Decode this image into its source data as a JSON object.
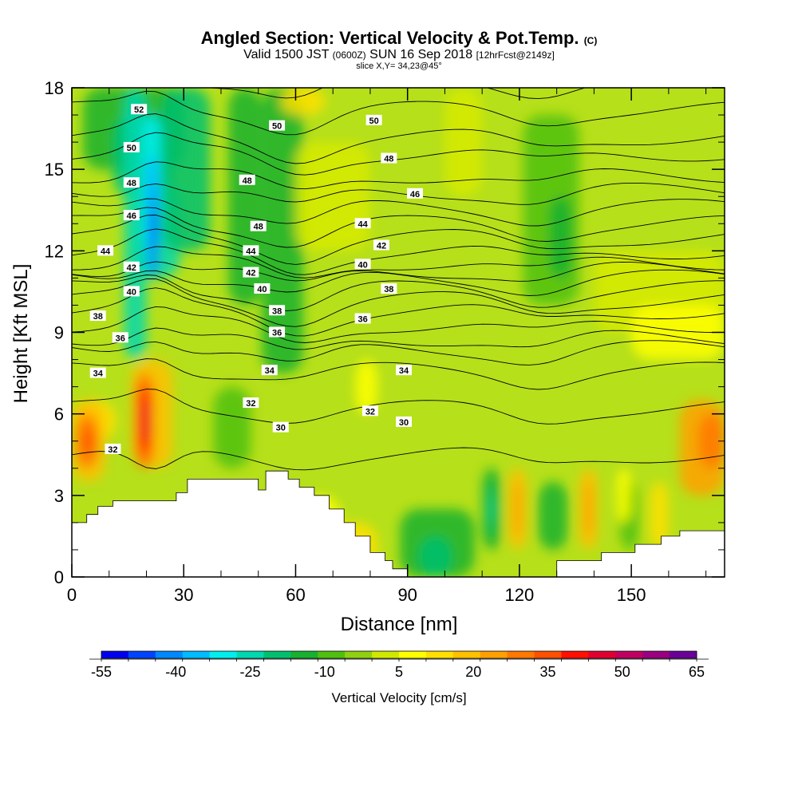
{
  "title": "Angled Section: Vertical Velocity & Pot.Temp.",
  "title_mark": "(C)",
  "subtitle_a": "Valid 1500 JST",
  "subtitle_b": "(0600Z)",
  "subtitle_c": "SUN 16 Sep 2018",
  "subtitle_d": "[12hrFcst@2149z]",
  "slice": "slice X,Y= 34,23@45°",
  "chart_data": {
    "type": "heatmap",
    "xlabel": "Distance [nm]",
    "ylabel": "Height [Kft MSL]",
    "xlim": [
      0,
      175
    ],
    "ylim": [
      0,
      18
    ],
    "x_ticks": [
      "0",
      "30",
      "60",
      "90",
      "120",
      "150"
    ],
    "y_ticks": [
      "0",
      "3",
      "6",
      "9",
      "12",
      "15",
      "18"
    ],
    "x_tick_values": [
      0,
      30,
      60,
      90,
      120,
      150
    ],
    "y_tick_values": [
      0,
      3,
      6,
      9,
      12,
      15,
      18
    ],
    "colorbar": {
      "title": "Vertical Velocity [cm/s]",
      "labels": [
        "-55",
        "-40",
        "-25",
        "-10",
        "5",
        "20",
        "35",
        "50",
        "65"
      ],
      "label_values": [
        -55,
        -40,
        -25,
        -10,
        5,
        20,
        35,
        50,
        65
      ],
      "colors": [
        "#0000f0",
        "#0044ff",
        "#0088ff",
        "#00bbff",
        "#00eeee",
        "#00d8b0",
        "#00c070",
        "#18b030",
        "#50c010",
        "#90d010",
        "#d0e800",
        "#ffff00",
        "#ffe000",
        "#ffc000",
        "#ffa000",
        "#ff7800",
        "#ff5000",
        "#ff1000",
        "#e00030",
        "#c00060",
        "#9a0080",
        "#6a0098"
      ]
    },
    "isentropes": [
      30,
      32,
      34,
      36,
      38,
      40,
      42,
      44,
      46,
      48,
      50,
      52
    ],
    "contour_labels": [
      {
        "text": "52",
        "x": 18,
        "y": 17.2
      },
      {
        "text": "50",
        "x": 16,
        "y": 15.8
      },
      {
        "text": "48",
        "x": 16,
        "y": 14.5
      },
      {
        "text": "46",
        "x": 16,
        "y": 13.3
      },
      {
        "text": "44",
        "x": 9,
        "y": 12.0
      },
      {
        "text": "42",
        "x": 16,
        "y": 11.4
      },
      {
        "text": "40",
        "x": 16,
        "y": 10.5
      },
      {
        "text": "38",
        "x": 7,
        "y": 9.6
      },
      {
        "text": "36",
        "x": 13,
        "y": 8.8
      },
      {
        "text": "34",
        "x": 7,
        "y": 7.5
      },
      {
        "text": "32",
        "x": 11,
        "y": 4.7
      },
      {
        "text": "50",
        "x": 55,
        "y": 16.6
      },
      {
        "text": "48",
        "x": 47,
        "y": 14.6
      },
      {
        "text": "48",
        "x": 50,
        "y": 12.9
      },
      {
        "text": "44",
        "x": 48,
        "y": 12.0
      },
      {
        "text": "42",
        "x": 48,
        "y": 11.2
      },
      {
        "text": "40",
        "x": 51,
        "y": 10.6
      },
      {
        "text": "38",
        "x": 55,
        "y": 9.8
      },
      {
        "text": "36",
        "x": 55,
        "y": 9.0
      },
      {
        "text": "34",
        "x": 53,
        "y": 7.6
      },
      {
        "text": "32",
        "x": 48,
        "y": 6.4
      },
      {
        "text": "30",
        "x": 56,
        "y": 5.5
      },
      {
        "text": "50",
        "x": 81,
        "y": 16.8
      },
      {
        "text": "48",
        "x": 85,
        "y": 15.4
      },
      {
        "text": "46",
        "x": 92,
        "y": 14.1
      },
      {
        "text": "44",
        "x": 78,
        "y": 13.0
      },
      {
        "text": "42",
        "x": 83,
        "y": 12.2
      },
      {
        "text": "40",
        "x": 78,
        "y": 11.5
      },
      {
        "text": "38",
        "x": 85,
        "y": 10.6
      },
      {
        "text": "36",
        "x": 78,
        "y": 9.5
      },
      {
        "text": "34",
        "x": 89,
        "y": 7.6
      },
      {
        "text": "32",
        "x": 80,
        "y": 6.1
      },
      {
        "text": "30",
        "x": 89,
        "y": 5.7
      }
    ]
  }
}
